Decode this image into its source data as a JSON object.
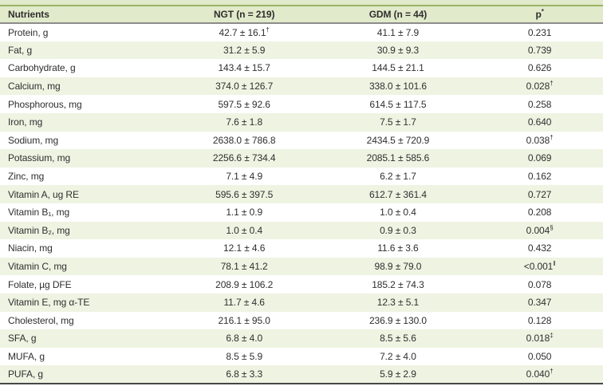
{
  "colors": {
    "header_bg": "#e1eaca",
    "row_alt_bg": "#eff3e2",
    "top_rule": "#9cb466",
    "header_rule": "#8c8c8c",
    "bottom_rule": "#474747",
    "text_color": "#2f2f2f"
  },
  "table": {
    "header": {
      "nutrients": "Nutrients",
      "ngt": "NGT (n = 219)",
      "gdm": "GDM (n = 44)",
      "p": "p",
      "p_sup": "*"
    },
    "rows": [
      {
        "nutrient": "Protein, g",
        "ngt": "42.7 ± 16.1",
        "ngt_sup": "†",
        "gdm": "41.1 ± 7.9",
        "gdm_sup": "",
        "p": "0.231",
        "p_sup": ""
      },
      {
        "nutrient": "Fat, g",
        "ngt": "31.2 ± 5.9",
        "ngt_sup": "",
        "gdm": "30.9 ± 9.3",
        "gdm_sup": "",
        "p": "0.739",
        "p_sup": ""
      },
      {
        "nutrient": "Carbohydrate, g",
        "ngt": "143.4 ± 15.7",
        "ngt_sup": "",
        "gdm": "144.5 ± 21.1",
        "gdm_sup": "",
        "p": "0.626",
        "p_sup": ""
      },
      {
        "nutrient": "Calcium, mg",
        "ngt": "374.0 ± 126.7",
        "ngt_sup": "",
        "gdm": "338.0 ± 101.6",
        "gdm_sup": "",
        "p": "0.028",
        "p_sup": "†"
      },
      {
        "nutrient": "Phosphorous, mg",
        "ngt": "597.5 ± 92.6",
        "ngt_sup": "",
        "gdm": "614.5 ± 117.5",
        "gdm_sup": "",
        "p": "0.258",
        "p_sup": ""
      },
      {
        "nutrient": "Iron, mg",
        "ngt": "7.6 ± 1.8",
        "ngt_sup": "",
        "gdm": "7.5 ± 1.7",
        "gdm_sup": "",
        "p": "0.640",
        "p_sup": ""
      },
      {
        "nutrient": "Sodium, mg",
        "ngt": "2638.0 ± 786.8",
        "ngt_sup": "",
        "gdm": "2434.5 ± 720.9",
        "gdm_sup": "",
        "p": "0.038",
        "p_sup": "†"
      },
      {
        "nutrient": "Potassium, mg",
        "ngt": "2256.6 ± 734.4",
        "ngt_sup": "",
        "gdm": "2085.1 ± 585.6",
        "gdm_sup": "",
        "p": "0.069",
        "p_sup": ""
      },
      {
        "nutrient": "Zinc, mg",
        "ngt": "7.1 ± 4.9",
        "ngt_sup": "",
        "gdm": "6.2 ± 1.7",
        "gdm_sup": "",
        "p": "0.162",
        "p_sup": ""
      },
      {
        "nutrient": "Vitamin A, ug RE",
        "ngt": "595.6 ± 397.5",
        "ngt_sup": "",
        "gdm": "612.7 ± 361.4",
        "gdm_sup": "",
        "p": "0.727",
        "p_sup": ""
      },
      {
        "nutrient": "Vitamin B₁, mg",
        "ngt": "1.1 ± 0.9",
        "ngt_sup": "",
        "gdm": "1.0 ± 0.4",
        "gdm_sup": "",
        "p": "0.208",
        "p_sup": ""
      },
      {
        "nutrient": "Vitamin B₂, mg",
        "ngt": "1.0 ± 0.4",
        "ngt_sup": "",
        "gdm": "0.9 ± 0.3",
        "gdm_sup": "",
        "p": "0.004",
        "p_sup": "§"
      },
      {
        "nutrient": "Niacin, mg",
        "ngt": "12.1 ± 4.6",
        "ngt_sup": "",
        "gdm": "11.6 ± 3.6",
        "gdm_sup": "",
        "p": "0.432",
        "p_sup": ""
      },
      {
        "nutrient": "Vitamin C, mg",
        "ngt": "78.1 ± 41.2",
        "ngt_sup": "",
        "gdm": "98.9 ± 79.0",
        "gdm_sup": "",
        "p": "<0.001",
        "p_sup": "‖"
      },
      {
        "nutrient": "Folate, µg DFE",
        "ngt": "208.9 ± 106.2",
        "ngt_sup": "",
        "gdm": "185.2 ± 74.3",
        "gdm_sup": "",
        "p": "0.078",
        "p_sup": ""
      },
      {
        "nutrient": "Vitamin E, mg α-TE",
        "ngt": "11.7 ± 4.6",
        "ngt_sup": "",
        "gdm": "12.3 ± 5.1",
        "gdm_sup": "",
        "p": "0.347",
        "p_sup": ""
      },
      {
        "nutrient": "Cholesterol, mg",
        "ngt": "216.1 ± 95.0",
        "ngt_sup": "",
        "gdm": "236.9 ± 130.0",
        "gdm_sup": "",
        "p": "0.128",
        "p_sup": ""
      },
      {
        "nutrient": "SFA, g",
        "ngt": "6.8 ± 4.0",
        "ngt_sup": "",
        "gdm": "8.5 ± 5.6",
        "gdm_sup": "",
        "p": "0.018",
        "p_sup": "‡"
      },
      {
        "nutrient": "MUFA, g",
        "ngt": "8.5 ± 5.9",
        "ngt_sup": "",
        "gdm": "7.2 ± 4.0",
        "gdm_sup": "",
        "p": "0.050",
        "p_sup": ""
      },
      {
        "nutrient": "PUFA, g",
        "ngt": "6.8 ± 3.3",
        "ngt_sup": "",
        "gdm": "5.9 ± 2.9",
        "gdm_sup": "",
        "p": "0.040",
        "p_sup": "†"
      }
    ]
  }
}
